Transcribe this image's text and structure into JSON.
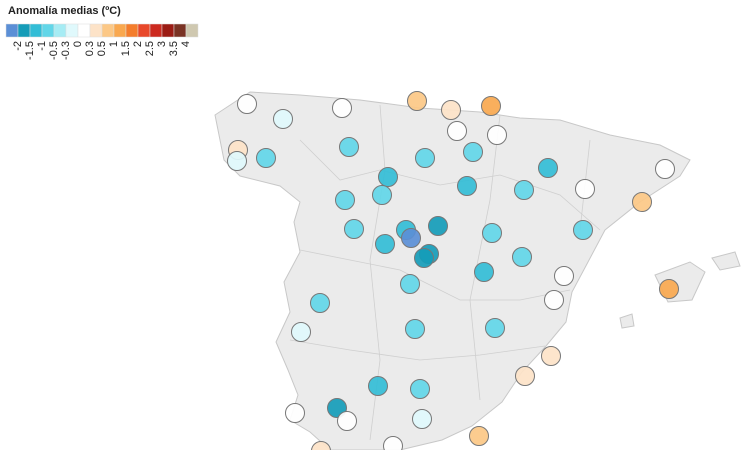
{
  "legend": {
    "title": "Anomalía medias (ºC)",
    "breaks": [
      -2,
      -1.5,
      -1,
      -0.5,
      -0.3,
      0,
      0.3,
      0.5,
      1,
      1.5,
      2,
      2.5,
      3,
      3.5,
      4
    ],
    "colors": [
      "#5b8fd6",
      "#159cb8",
      "#33bdd6",
      "#62d6e8",
      "#a6ecf4",
      "#e0f9fc",
      "#ffffff",
      "#fde3c8",
      "#fcc886",
      "#f9a84f",
      "#f47d2c",
      "#e8482a",
      "#cc2a1f",
      "#9b1c14",
      "#7a3324",
      "#cfc8b0"
    ]
  },
  "stations": {
    "values": [
      0.1,
      -0.2,
      0.1,
      0.8,
      0.4,
      1.2,
      0.1,
      0.1,
      0.4,
      -0.2,
      -0.7,
      -0.7,
      -0.7,
      -0.7,
      -1.2,
      0.1,
      -1.2,
      -1.2,
      -0.7,
      0.1,
      -0.7,
      -0.7,
      0.8,
      -0.7,
      -1.2,
      -1.7,
      -0.7,
      -0.7,
      -1.2,
      -2.2,
      -1.7,
      -1.7,
      -0.7,
      -1.2,
      0.1,
      -0.7,
      1.2,
      0.1,
      -0.7,
      -0.2,
      -0.7,
      -0.7,
      0.4,
      -1.2,
      -0.7,
      0.4,
      0.1,
      -1.7,
      -0.2,
      0.1,
      0.8,
      0.1,
      0.4
    ]
  }
}
